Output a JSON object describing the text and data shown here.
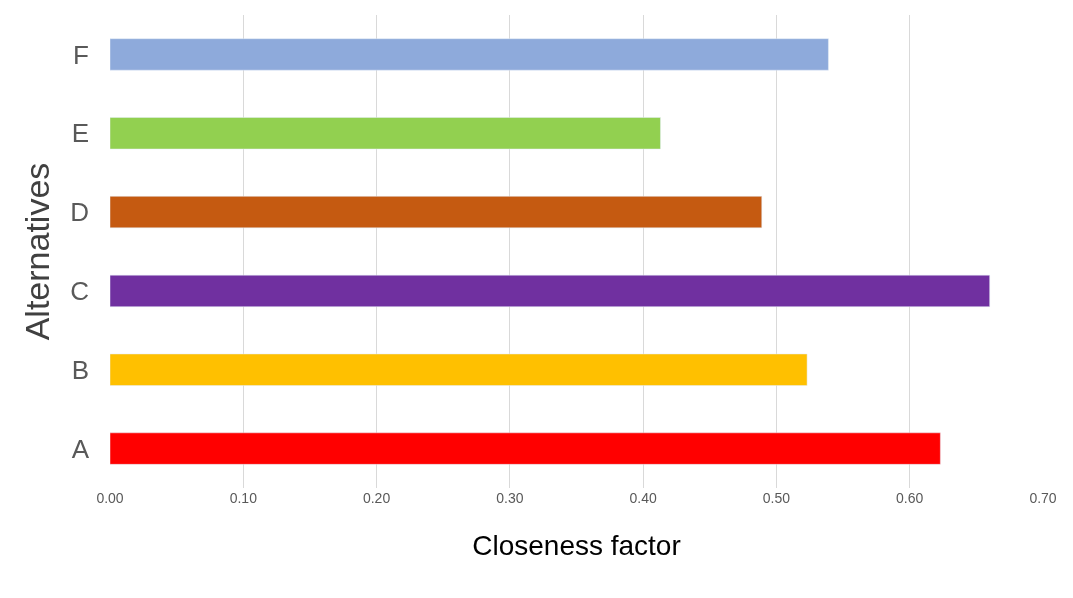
{
  "chart_data": {
    "type": "bar",
    "orientation": "horizontal",
    "xlabel": "Closeness factor",
    "ylabel": "Alternatives",
    "categories": [
      "F",
      "E",
      "D",
      "C",
      "B",
      "A"
    ],
    "values": [
      0.539,
      0.413,
      0.489,
      0.66,
      0.523,
      0.623
    ],
    "colors": [
      "#8eaadb",
      "#92d050",
      "#c55a11",
      "#7030a0",
      "#ffc000",
      "#ff0000"
    ],
    "xlim": [
      0,
      0.7
    ],
    "xticks": [
      {
        "value": 0,
        "label": "0.00"
      },
      {
        "value": 0.1,
        "label": "0.10"
      },
      {
        "value": 0.2,
        "label": "0.20"
      },
      {
        "value": 0.3,
        "label": "0.30"
      },
      {
        "value": 0.4,
        "label": "0.40"
      },
      {
        "value": 0.5,
        "label": "0.50"
      },
      {
        "value": 0.6,
        "label": "0.60"
      },
      {
        "value": 0.7,
        "label": "0.70"
      }
    ],
    "grid": "x"
  }
}
